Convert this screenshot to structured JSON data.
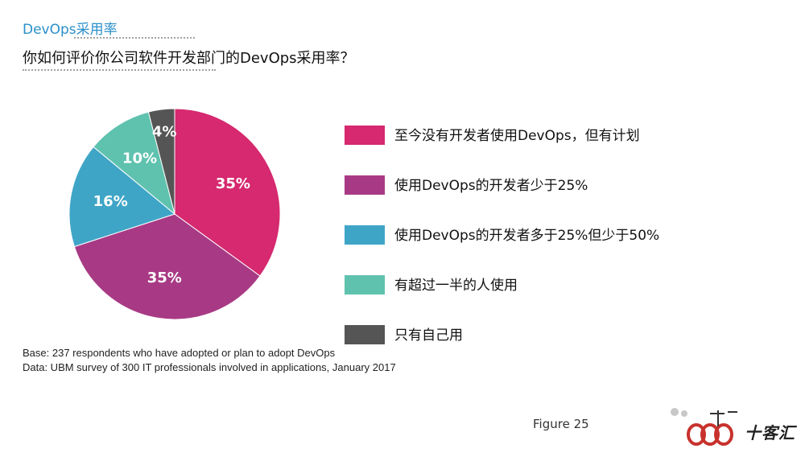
{
  "header": {
    "kicker": "DevOps采用率",
    "question": "你如何评价你公司软件开发部门的DevOps采用率？"
  },
  "chart_data": {
    "type": "pie",
    "slices": [
      {
        "name": "至今没有开发者使用DevOps，但有计划",
        "value": 35,
        "label": "35%",
        "color": "#d6296f"
      },
      {
        "name": "使用DevOps的开发者少于25%",
        "value": 35,
        "label": "35%",
        "color": "#a83a85"
      },
      {
        "name": "使用DevOps的开发者多于25%但少于50%",
        "value": 16,
        "label": "16%",
        "color": "#3fa5c7"
      },
      {
        "name": "有超过一半的人使用",
        "value": 10,
        "label": "10%",
        "color": "#5fc2ae"
      },
      {
        "name": "只有自己用",
        "value": 4,
        "label": "4%",
        "color": "#555555"
      }
    ],
    "start": "12 o'clock",
    "direction": "clockwise"
  },
  "legend": {
    "items": [
      {
        "label": "至今没有开发者使用DevOps，但有计划",
        "color": "#d6296f"
      },
      {
        "label": "使用DevOps的开发者少于25%",
        "color": "#a83a85"
      },
      {
        "label": "使用DevOps的开发者多于25%但少于50%",
        "color": "#3fa5c7"
      },
      {
        "label": "有超过一半的人使用",
        "color": "#5fc2ae"
      },
      {
        "label": "只有自己用",
        "color": "#555555"
      }
    ]
  },
  "notes": {
    "base": "Base: 237 respondents who have adopted or plan to adopt DevOps",
    "data": "Data: UBM survey of 300 IT professionals involved in applications, January 2017"
  },
  "figure_label": "Figure 25",
  "watermark": {
    "text": "十客汇"
  }
}
